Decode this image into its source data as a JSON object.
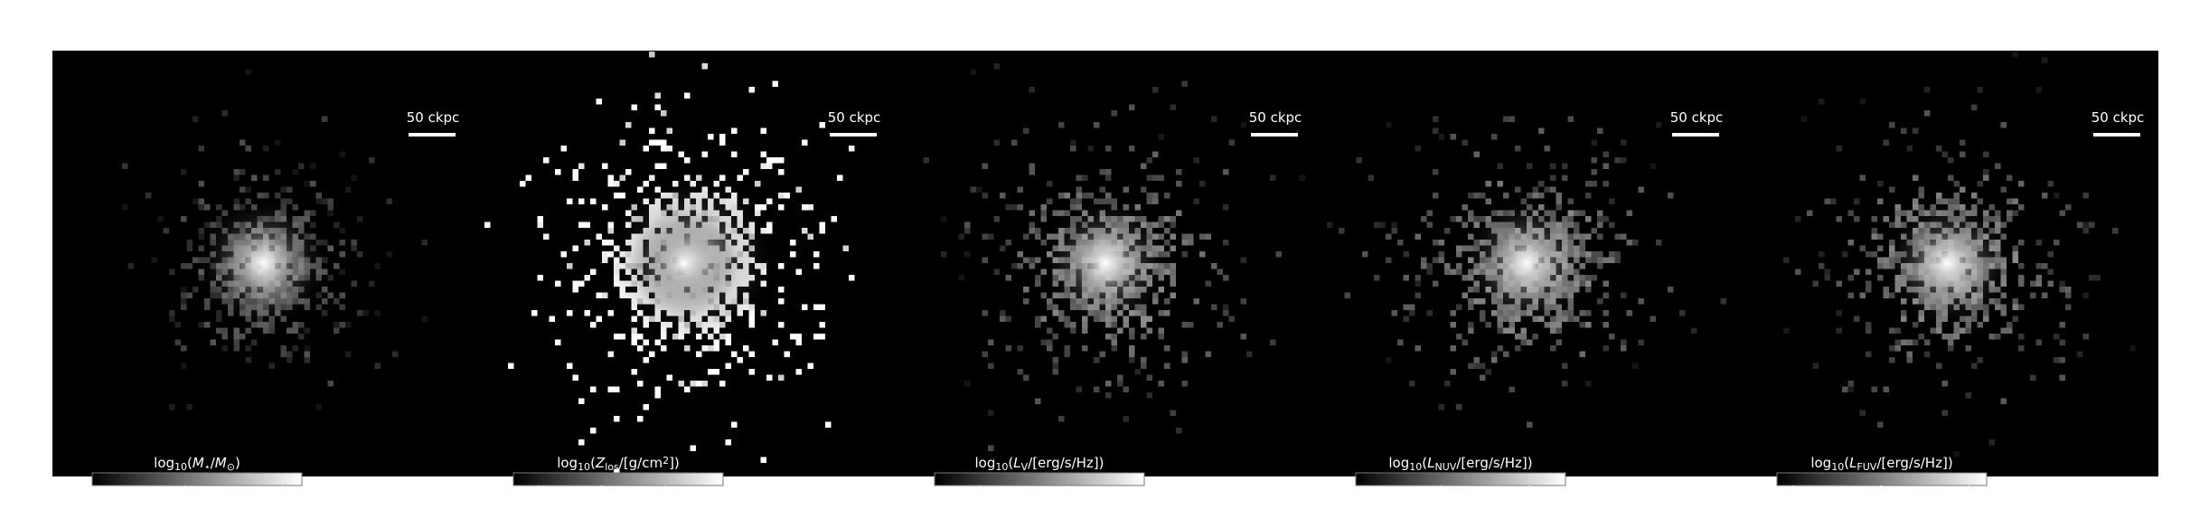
{
  "panels": [
    {
      "scale_bar": "50 ckpc",
      "colorbar": {
        "label": [
          {
            "text": "log"
          },
          {
            "text": "10",
            "sub": true
          },
          {
            "text": "("
          },
          {
            "text": "M",
            "italic": true
          },
          {
            "text": "⋆",
            "sub": true
          },
          {
            "text": "/"
          },
          {
            "text": "M",
            "italic": true
          },
          {
            "text": "⊙",
            "sub": true
          },
          {
            "text": ")"
          }
        ],
        "range": [
          6.1,
          10.4
        ],
        "ticks": [
          8,
          10
        ]
      }
    },
    {
      "scale_bar": "50 ckpc",
      "colorbar": {
        "label": [
          {
            "text": "log"
          },
          {
            "text": "10",
            "sub": true
          },
          {
            "text": "("
          },
          {
            "text": "Z",
            "italic": true
          },
          {
            "text": "los",
            "sub": true
          },
          {
            "text": "/[g/cm"
          },
          {
            "text": "2",
            "sup": true
          },
          {
            "text": "])"
          }
        ],
        "range": [
          -22,
          -5.4
        ],
        "ticks": [
          -20,
          -15,
          -10
        ]
      }
    },
    {
      "scale_bar": "50 ckpc",
      "colorbar": {
        "label": [
          {
            "text": "log"
          },
          {
            "text": "10",
            "sub": true
          },
          {
            "text": "("
          },
          {
            "text": "L",
            "italic": true
          },
          {
            "text": "V",
            "sub": true
          },
          {
            "text": "/[erg/s/Hz])"
          }
        ],
        "range": [
          25.0,
          29.7
        ],
        "ticks": [
          26,
          28
        ]
      }
    },
    {
      "scale_bar": "50 ckpc",
      "colorbar": {
        "label": [
          {
            "text": "log"
          },
          {
            "text": "10",
            "sub": true
          },
          {
            "text": "("
          },
          {
            "text": "L",
            "italic": true
          },
          {
            "text": "NUV",
            "sub": true
          },
          {
            "text": "/[erg/s/Hz])"
          }
        ],
        "range": [
          24.1,
          28.8
        ],
        "ticks": [
          26,
          28
        ]
      }
    },
    {
      "scale_bar": "50 ckpc",
      "colorbar": {
        "label": [
          {
            "text": "log"
          },
          {
            "text": "10",
            "sub": true
          },
          {
            "text": "("
          },
          {
            "text": "L",
            "italic": true
          },
          {
            "text": "FUV",
            "sub": true
          },
          {
            "text": "/[erg/s/Hz])"
          }
        ],
        "range": [
          23.65,
          28.4
        ],
        "ticks": [
          24,
          26,
          28
        ]
      }
    }
  ]
}
